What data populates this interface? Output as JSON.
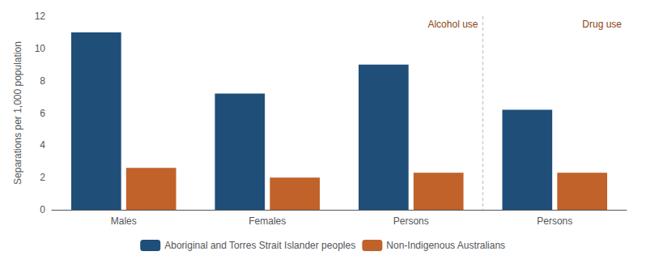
{
  "chart_data": {
    "type": "bar",
    "categories": [
      "Males",
      "Females",
      "Persons",
      "Persons"
    ],
    "series": [
      {
        "name": "Aboriginal and Torres Strait Islander peoples",
        "color": "#1F4E79",
        "values": [
          11.0,
          7.2,
          9.0,
          6.2
        ]
      },
      {
        "name": "Non-Indigenous Australians",
        "color": "#C0622A",
        "values": [
          2.6,
          2.0,
          2.3,
          2.3
        ]
      }
    ],
    "y_label": "Separations per 1,000 population",
    "ylim": [
      0,
      12
    ],
    "yticks": [
      0,
      2,
      4,
      6,
      8,
      10,
      12
    ],
    "grid": false,
    "legend": "bottom",
    "annotations": [
      {
        "text": "Alcohol use",
        "color": "#8B4513"
      },
      {
        "text": "Drug use",
        "color": "#8B4513"
      }
    ]
  }
}
